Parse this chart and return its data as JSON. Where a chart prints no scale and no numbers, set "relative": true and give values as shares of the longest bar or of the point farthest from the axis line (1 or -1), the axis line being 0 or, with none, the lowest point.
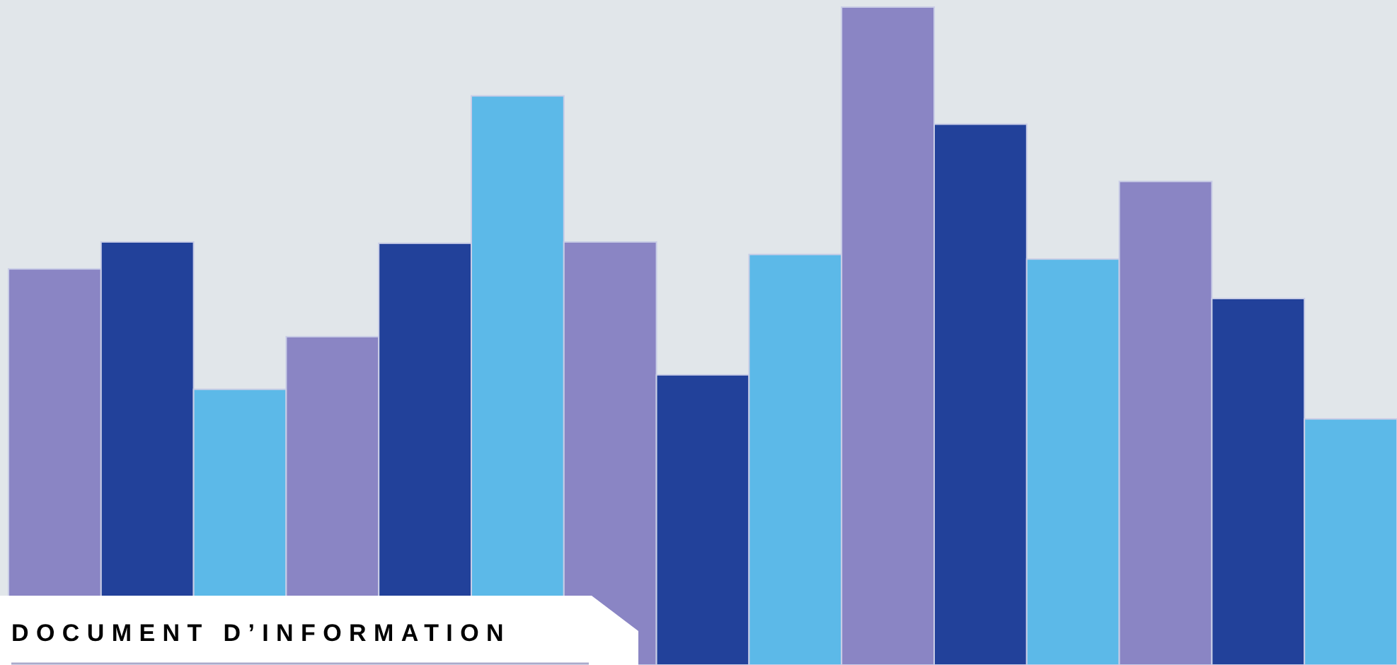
{
  "chart_data": {
    "type": "bar",
    "title": "DOCUMENT D’INFORMATION",
    "relative": true,
    "categories": [
      null,
      null,
      null,
      null,
      null,
      null,
      null,
      null,
      null,
      null,
      null,
      null,
      null,
      null,
      null
    ],
    "values": [
      0.602,
      0.643,
      0.419,
      0.499,
      0.641,
      0.865,
      0.643,
      0.441,
      0.624,
      1,
      0.822,
      0.617,
      0.735,
      0.557,
      0.374
    ],
    "colors": [
      "#8a85c4",
      "#22419a",
      "#5cb9e8",
      "#8a85c4",
      "#22419a",
      "#5cb9e8",
      "#8a85c4",
      "#22419a",
      "#5cb9e8",
      "#8a85c4",
      "#22419a",
      "#5cb9e8",
      "#8a85c4",
      "#22419a",
      "#5cb9e8"
    ],
    "data_labels": false
  }
}
